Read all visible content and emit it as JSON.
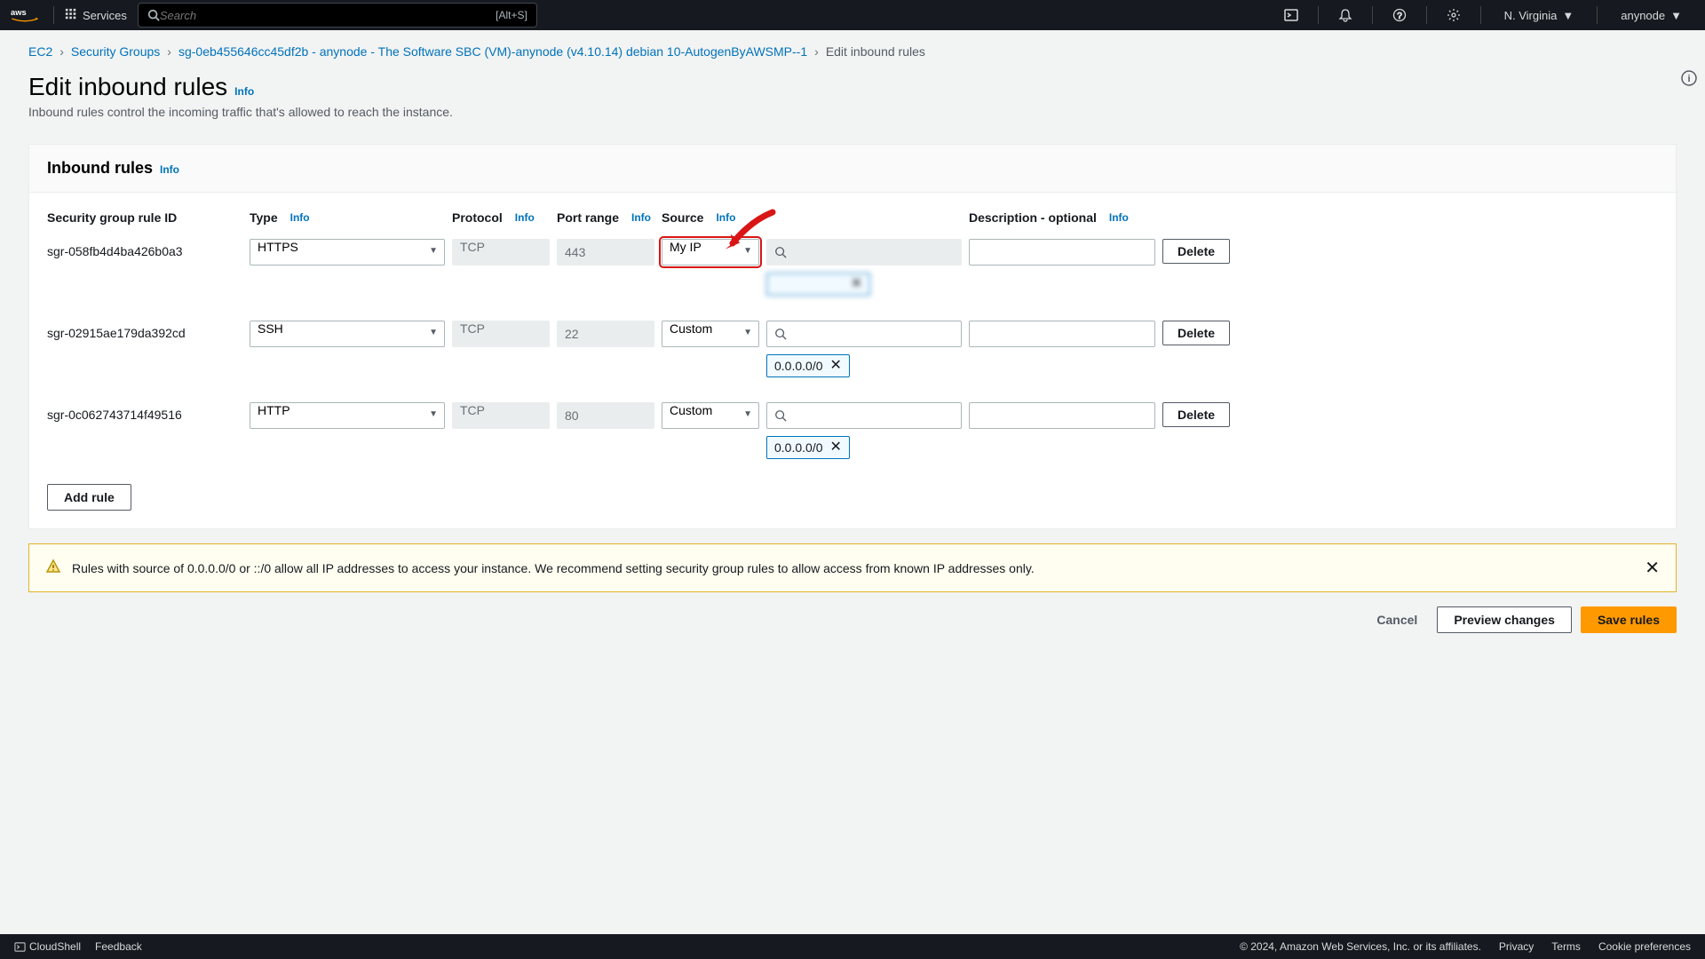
{
  "topnav": {
    "services_label": "Services",
    "search_placeholder": "Search",
    "search_kbd": "[Alt+S]",
    "region": "N. Virginia",
    "user": "anynode"
  },
  "breadcrumb": {
    "items": [
      "EC2",
      "Security Groups",
      "sg-0eb455646cc45df2b - anynode - The Software SBC (VM)-anynode (v4.10.14) debian 10-AutogenByAWSMP--1"
    ],
    "current": "Edit inbound rules"
  },
  "page": {
    "title": "Edit inbound rules",
    "info": "Info",
    "description": "Inbound rules control the incoming traffic that's allowed to reach the instance."
  },
  "panel": {
    "title": "Inbound rules",
    "info": "Info",
    "columns": {
      "rule_id": "Security group rule ID",
      "type": "Type",
      "protocol": "Protocol",
      "port": "Port range",
      "source": "Source",
      "description": "Description - optional"
    },
    "rules": [
      {
        "id": "sgr-058fb4d4ba426b0a3",
        "type": "HTTPS",
        "protocol": "TCP",
        "port": "443",
        "source_mode": "My IP",
        "source_highlighted": true,
        "source_disabled": true,
        "tag": "",
        "tag_blur": true,
        "description": ""
      },
      {
        "id": "sgr-02915ae179da392cd",
        "type": "SSH",
        "protocol": "TCP",
        "port": "22",
        "source_mode": "Custom",
        "source_highlighted": false,
        "source_disabled": false,
        "tag": "0.0.0.0/0",
        "tag_blur": false,
        "description": ""
      },
      {
        "id": "sgr-0c062743714f49516",
        "type": "HTTP",
        "protocol": "TCP",
        "port": "80",
        "source_mode": "Custom",
        "source_highlighted": false,
        "source_disabled": false,
        "tag": "0.0.0.0/0",
        "tag_blur": false,
        "description": ""
      }
    ],
    "add_rule": "Add rule",
    "delete": "Delete"
  },
  "warning": {
    "text": "Rules with source of 0.0.0.0/0 or ::/0 allow all IP addresses to access your instance. We recommend setting security group rules to allow access from known IP addresses only."
  },
  "actions": {
    "cancel": "Cancel",
    "preview": "Preview changes",
    "save": "Save rules"
  },
  "bottombar": {
    "cloudshell": "CloudShell",
    "feedback": "Feedback",
    "copyright": "© 2024, Amazon Web Services, Inc. or its affiliates.",
    "privacy": "Privacy",
    "terms": "Terms",
    "cookies": "Cookie preferences"
  }
}
